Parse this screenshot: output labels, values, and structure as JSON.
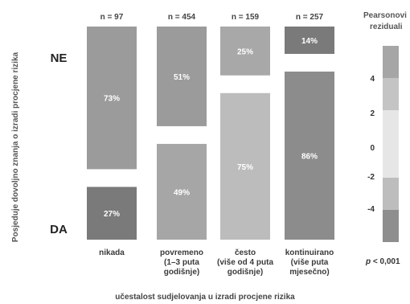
{
  "chart_data": {
    "type": "mosaic",
    "xlabel": "učestalost sudjelovanja u izradi procjene rizika",
    "ylabel": "Posjeduje dovoljno znanja o izradi procjene rizika",
    "rows": [
      "NE",
      "DA"
    ],
    "categories": [
      {
        "label": [
          "nikada"
        ],
        "n_label": "n = 97",
        "n": 97,
        "NE": 73,
        "DA": 27,
        "NE_label": "73%",
        "DA_label": "27%",
        "NE_color": "#9b9b9b",
        "DA_color": "#7a7a7a"
      },
      {
        "label": [
          "povremeno",
          "(1–3 puta",
          "godišnje)"
        ],
        "n_label": "n = 454",
        "n": 454,
        "NE": 51,
        "DA": 49,
        "NE_label": "51%",
        "DA_label": "49%",
        "NE_color": "#9b9b9b",
        "DA_color": "#a6a6a6"
      },
      {
        "label": [
          "često",
          "(više od 4 puta",
          "godišnje)"
        ],
        "n_label": "n = 159",
        "n": 159,
        "NE": 25,
        "DA": 75,
        "NE_label": "25%",
        "DA_label": "75%",
        "NE_color": "#a8a8a8",
        "DA_color": "#bcbcbc"
      },
      {
        "label": [
          "kontinuirano",
          "(više puta",
          "mjesečno)"
        ],
        "n_label": "n = 257",
        "n": 257,
        "NE": 14,
        "DA": 86,
        "NE_label": "14%",
        "DA_label": "86%",
        "NE_color": "#7a7a7a",
        "DA_color": "#8c8c8c"
      }
    ],
    "legend": {
      "title": [
        "Pearsonovi",
        "reziduali"
      ],
      "ticks": [
        4,
        2,
        0,
        -2,
        -4
      ],
      "tick_labels": [
        "4",
        "2",
        "0",
        "-2",
        "-4"
      ],
      "bands": [
        "#a6a6a6",
        "#c4c4c4",
        "#e6e6e6",
        "#bdbdbd",
        "#8e8e8e"
      ]
    },
    "pvalue_prefix": "p",
    "pvalue_rest": " < 0,001"
  }
}
